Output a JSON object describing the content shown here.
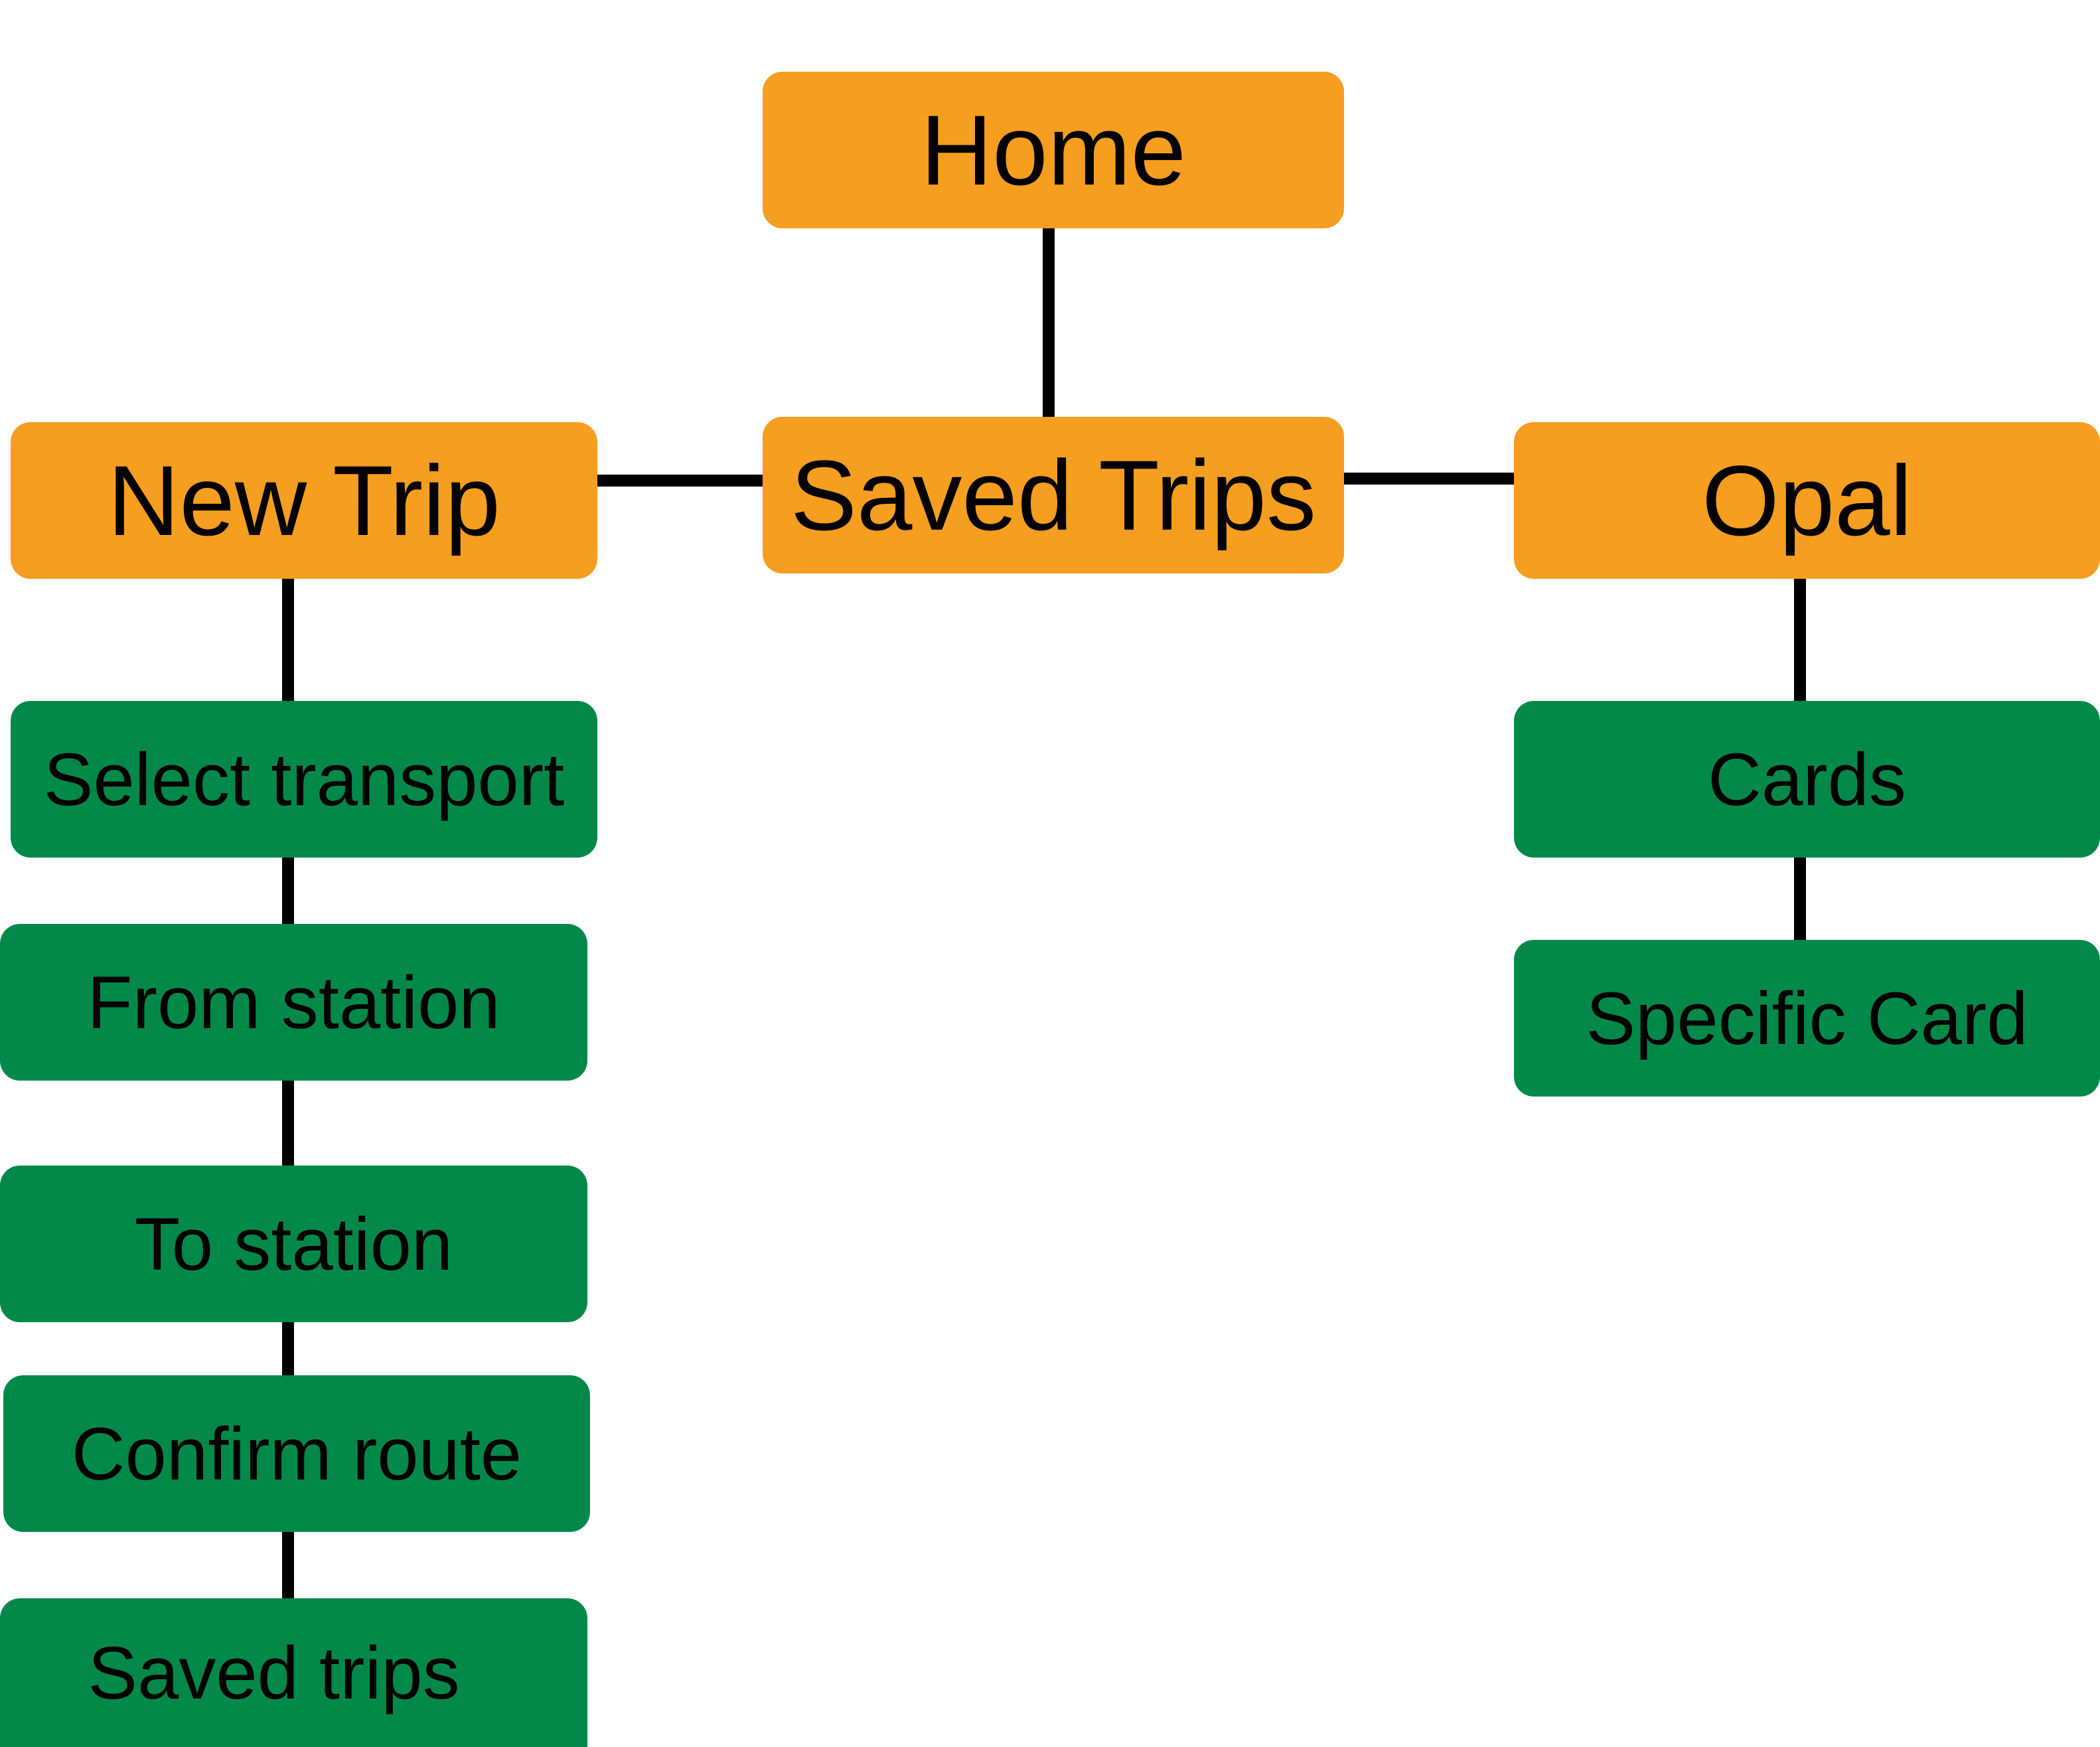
{
  "colors": {
    "primary_node": "#F59E1F",
    "secondary_node": "#02894A",
    "connector": "#000000",
    "text": "#000000",
    "background": "#FFFFFF"
  },
  "nodes": {
    "home": "Home",
    "saved_trips": "Saved Trips",
    "new_trip": "New Trip",
    "opal": "Opal",
    "select_transport": "Select transport",
    "from_station": "From station",
    "to_station": "To station",
    "confirm_route": "Confirm route",
    "saved_trips_step": "Saved trips",
    "cards": "Cards",
    "specific_card": "Specific Card"
  }
}
